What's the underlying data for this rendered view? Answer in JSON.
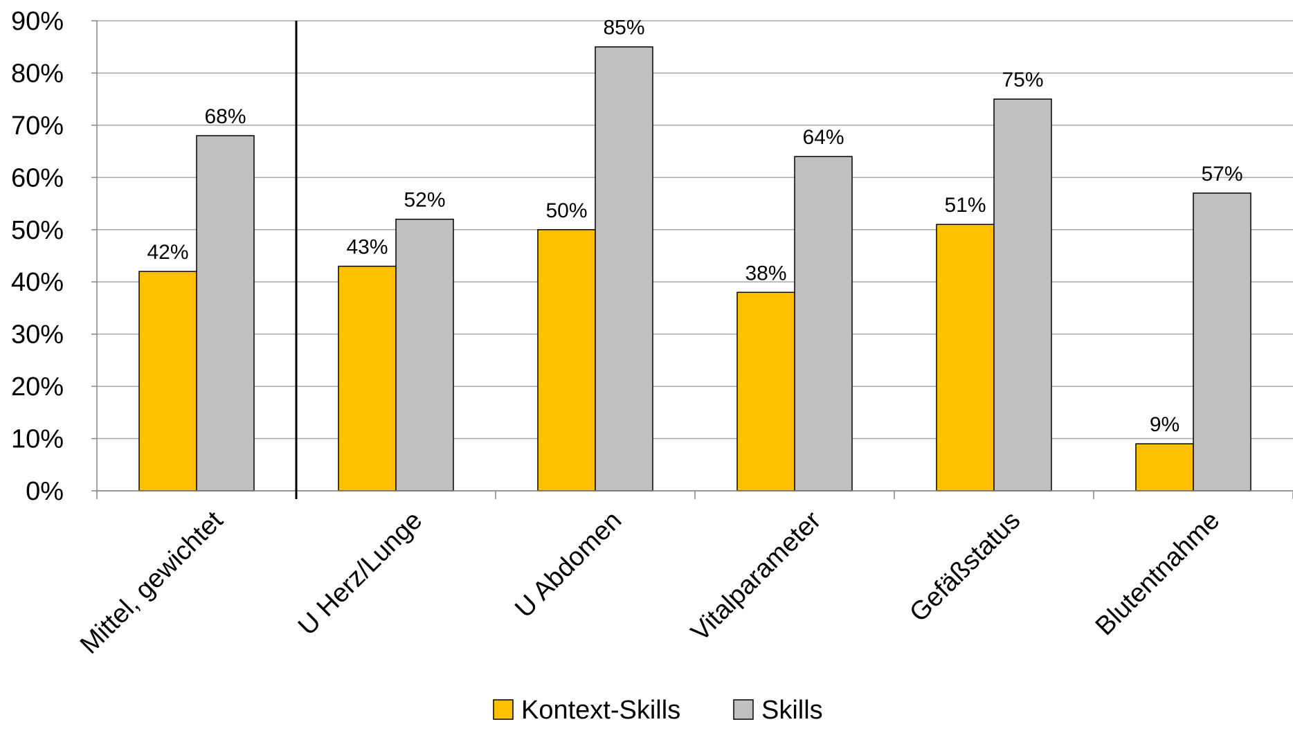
{
  "chart_data": {
    "type": "bar",
    "categories": [
      "Mittel, gewichtet",
      "U Herz/Lunge",
      "U Abdomen",
      "Vitalparameter",
      "Gefäßstatus",
      "Blutentnahme"
    ],
    "series": [
      {
        "name": "Kontext-Skills",
        "color": "#FFC000",
        "values": [
          42,
          43,
          50,
          38,
          51,
          9
        ]
      },
      {
        "name": "Skills",
        "color": "#C0C0C0",
        "values": [
          68,
          52,
          85,
          64,
          75,
          57
        ]
      }
    ],
    "y_ticks": [
      "0%",
      "10%",
      "20%",
      "30%",
      "40%",
      "50%",
      "60%",
      "70%",
      "80%",
      "90%"
    ],
    "ylim": [
      0,
      90
    ],
    "value_suffix": "%",
    "grid": true,
    "legend_position": "bottom",
    "separator_after_category": 0
  }
}
